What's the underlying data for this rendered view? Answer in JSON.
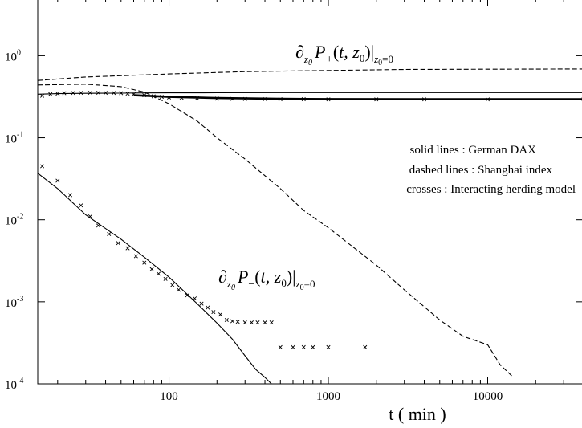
{
  "chart_data": {
    "type": "line",
    "xscale": "log",
    "yscale": "log",
    "xlim": [
      15,
      40000
    ],
    "ylim": [
      0.0001,
      5
    ],
    "xlabel": "t ( min )",
    "ylabel": "",
    "grid": false,
    "xticks": [
      {
        "value": 100,
        "label": "100"
      },
      {
        "value": 1000,
        "label": "1000"
      },
      {
        "value": 10000,
        "label": "10000"
      }
    ],
    "yticks": [
      {
        "value": 1,
        "mant": "10",
        "exp": "0"
      },
      {
        "value": 0.1,
        "mant": "10",
        "exp": "-1"
      },
      {
        "value": 0.01,
        "mant": "10",
        "exp": "-2"
      },
      {
        "value": 0.001,
        "mant": "10",
        "exp": "-3"
      },
      {
        "value": 0.0001,
        "mant": "10",
        "exp": "-4"
      }
    ],
    "annotations": [
      {
        "text": "∂z₀P₊(t, z₀)|z₀=0",
        "at": [
          2000,
          1.0
        ]
      },
      {
        "text": "∂z₀P₋(t, z₀)|z₀=0",
        "at": [
          450,
          0.0013
        ]
      }
    ],
    "legend": {
      "placement": "upper-right",
      "entries": [
        "solid lines : German DAX",
        "dashed lines : Shanghai index",
        "crosses : Interacting herding model"
      ]
    },
    "series": [
      {
        "style": "solid",
        "x": [
          15,
          20,
          30,
          50,
          70,
          100,
          200,
          500,
          1000,
          5000,
          10000,
          40000
        ],
        "y": [
          0.34,
          0.345,
          0.348,
          0.35,
          0.352,
          0.353,
          0.354,
          0.355,
          0.355,
          0.355,
          0.355,
          0.355
        ]
      },
      {
        "style": "solid",
        "x": [
          60,
          100,
          200,
          500,
          1000,
          5000,
          10000,
          40000
        ],
        "y": [
          0.33,
          0.315,
          0.305,
          0.298,
          0.296,
          0.295,
          0.295,
          0.295
        ]
      },
      {
        "style": "solid",
        "x": [
          15,
          20,
          30,
          50,
          70,
          100,
          150,
          200,
          250,
          300,
          350,
          400,
          440
        ],
        "y": [
          0.037,
          0.024,
          0.0115,
          0.0058,
          0.0035,
          0.002,
          0.00095,
          0.00055,
          0.00035,
          0.00022,
          0.00015,
          0.00012,
          0.0001
        ]
      },
      {
        "style": "dashed",
        "x": [
          15,
          30,
          100,
          300,
          1000,
          3000,
          10000,
          40000
        ],
        "y": [
          0.5,
          0.55,
          0.6,
          0.64,
          0.66,
          0.68,
          0.685,
          0.69
        ]
      },
      {
        "style": "dashed",
        "x": [
          15,
          30,
          50,
          70,
          100,
          150,
          200,
          300,
          500,
          700,
          1000,
          2000,
          3000,
          5000,
          7000,
          10000,
          12000,
          14500
        ],
        "y": [
          0.44,
          0.45,
          0.42,
          0.36,
          0.26,
          0.16,
          0.1,
          0.055,
          0.024,
          0.013,
          0.008,
          0.0028,
          0.0014,
          0.0006,
          0.00038,
          0.0003,
          0.00017,
          0.00012
        ]
      },
      {
        "style": "crosses",
        "x": [
          16,
          18,
          20,
          22,
          25,
          28,
          32,
          36,
          40,
          45,
          50,
          55,
          60,
          70,
          80,
          90,
          100,
          120,
          150,
          200,
          250,
          300,
          400,
          500,
          700,
          1000,
          2000,
          4000,
          10000,
          40000
        ],
        "y": [
          0.325,
          0.34,
          0.345,
          0.35,
          0.352,
          0.353,
          0.354,
          0.354,
          0.353,
          0.352,
          0.35,
          0.345,
          0.34,
          0.33,
          0.32,
          0.315,
          0.31,
          0.306,
          0.303,
          0.3,
          0.298,
          0.297,
          0.296,
          0.295,
          0.295,
          0.294,
          0.294,
          0.294,
          0.294,
          0.294
        ]
      },
      {
        "style": "crosses",
        "x": [
          16,
          20,
          24,
          28,
          32,
          36,
          42,
          48,
          55,
          62,
          70,
          78,
          86,
          95,
          105,
          115,
          130,
          145,
          160,
          175,
          190,
          210,
          230,
          250,
          270,
          300,
          330,
          360,
          400,
          440,
          500,
          600,
          700,
          800,
          1000,
          1700
        ],
        "y": [
          0.045,
          0.03,
          0.02,
          0.015,
          0.011,
          0.0085,
          0.0067,
          0.0052,
          0.0045,
          0.0036,
          0.003,
          0.0025,
          0.0022,
          0.0019,
          0.0016,
          0.0014,
          0.0012,
          0.0011,
          0.00095,
          0.00085,
          0.00075,
          0.0007,
          0.0006,
          0.00058,
          0.00057,
          0.00056,
          0.00056,
          0.00056,
          0.00056,
          0.00056,
          0.00028,
          0.00028,
          0.00028,
          0.00028,
          0.00028,
          0.00028
        ]
      }
    ]
  }
}
